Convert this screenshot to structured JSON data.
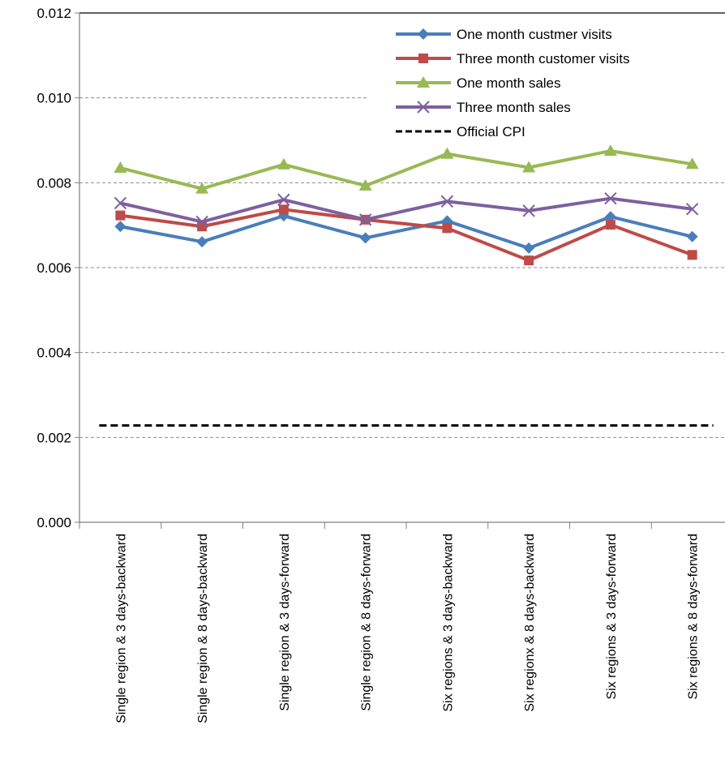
{
  "chart_data": {
    "type": "line",
    "title": "",
    "xlabel": "",
    "ylabel": "",
    "ylim": [
      0,
      0.012
    ],
    "yticks": [
      "0.000",
      "0.002",
      "0.004",
      "0.006",
      "0.008",
      "0.010",
      "0.012"
    ],
    "categories": [
      "Single region & 3  days-backward",
      "Single region & 8 days-backward",
      "Single region & 3  days-forward",
      "Single region & 8 days-forward",
      "Six regions & 3 days-backward",
      "Six regionx & 8 days-backward",
      "Six regions & 3 days-forward",
      "Six regions & 8 days-forward"
    ],
    "grid": true,
    "legend_position": "top-right",
    "series": [
      {
        "name": "One month custmer visits",
        "color": "#4a7ebb",
        "marker": "diamond",
        "values": [
          0.00697,
          0.00661,
          0.00722,
          0.0067,
          0.0071,
          0.00646,
          0.0072,
          0.00673
        ]
      },
      {
        "name": "Three month customer visits",
        "color": "#be4b48",
        "marker": "square",
        "values": [
          0.00723,
          0.00697,
          0.00737,
          0.00713,
          0.00693,
          0.00617,
          0.00701,
          0.0063
        ]
      },
      {
        "name": "One month sales",
        "color": "#98b954",
        "marker": "triangle",
        "values": [
          0.00835,
          0.00786,
          0.00843,
          0.00793,
          0.00868,
          0.00836,
          0.00875,
          0.00844
        ]
      },
      {
        "name": "Three month sales",
        "color": "#7d60a0",
        "marker": "x",
        "values": [
          0.00752,
          0.00708,
          0.0076,
          0.00713,
          0.00756,
          0.00734,
          0.00763,
          0.00738
        ]
      },
      {
        "name": "Official CPI",
        "color": "#000000",
        "marker": "none",
        "dash": true,
        "values": [
          0.00228,
          0.00228,
          0.00228,
          0.00228,
          0.00228,
          0.00228,
          0.00228,
          0.00228
        ]
      }
    ]
  }
}
